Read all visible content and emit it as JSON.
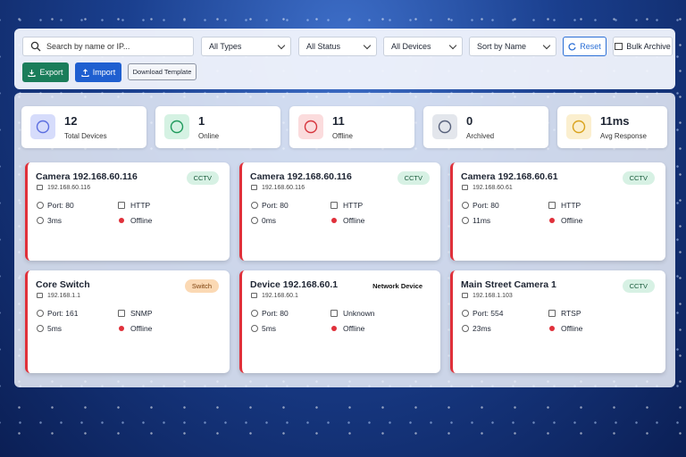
{
  "toolbar": {
    "search_placeholder": "Search by name or IP...",
    "filters": [
      "All Types",
      "All Status",
      "All Devices",
      "Sort by Name"
    ],
    "reset": "Reset",
    "bulk_archive": "Bulk Archive",
    "export": "Export",
    "import": "Import",
    "download_template": "Download Template"
  },
  "stats": [
    {
      "value": 12,
      "label": "Total Devices"
    },
    {
      "value": 1,
      "label": "Online"
    },
    {
      "value": 11,
      "label": "Offline"
    },
    {
      "value": 0,
      "label": "Archived"
    },
    {
      "value": "11ms",
      "label": "Avg Response"
    }
  ],
  "devices": [
    {
      "name": "Camera 192.168.60.116",
      "tag": "CCTV",
      "ip": "192.168.60.116",
      "port": "Port: 80",
      "protocol": "HTTP",
      "latency": "3ms",
      "status": "Offline"
    },
    {
      "name": "Camera 192.168.60.116",
      "tag": "CCTV",
      "ip": "192.168.60.116",
      "port": "Port: 80",
      "protocol": "HTTP",
      "latency": "0ms",
      "status": "Offline"
    },
    {
      "name": "Camera 192.168.60.61",
      "tag": "CCTV",
      "ip": "192.168.60.61",
      "port": "Port: 80",
      "protocol": "HTTP",
      "latency": "11ms",
      "status": "Offline"
    },
    {
      "name": "Core Switch",
      "tag": "Switch",
      "ip": "192.168.1.1",
      "port": "Port: 161",
      "protocol": "SNMP",
      "latency": "5ms",
      "status": "Offline"
    },
    {
      "name": "Device 192.168.60.1",
      "tag": "Network Device",
      "ip": "192.168.60.1",
      "port": "Port: 80",
      "protocol": "Unknown",
      "latency": "5ms",
      "status": "Offline"
    },
    {
      "name": "Main Street Camera 1",
      "tag": "CCTV",
      "ip": "192.168.1.103",
      "port": "Port: 554",
      "protocol": "RTSP",
      "latency": "23ms",
      "status": "Offline"
    }
  ]
}
